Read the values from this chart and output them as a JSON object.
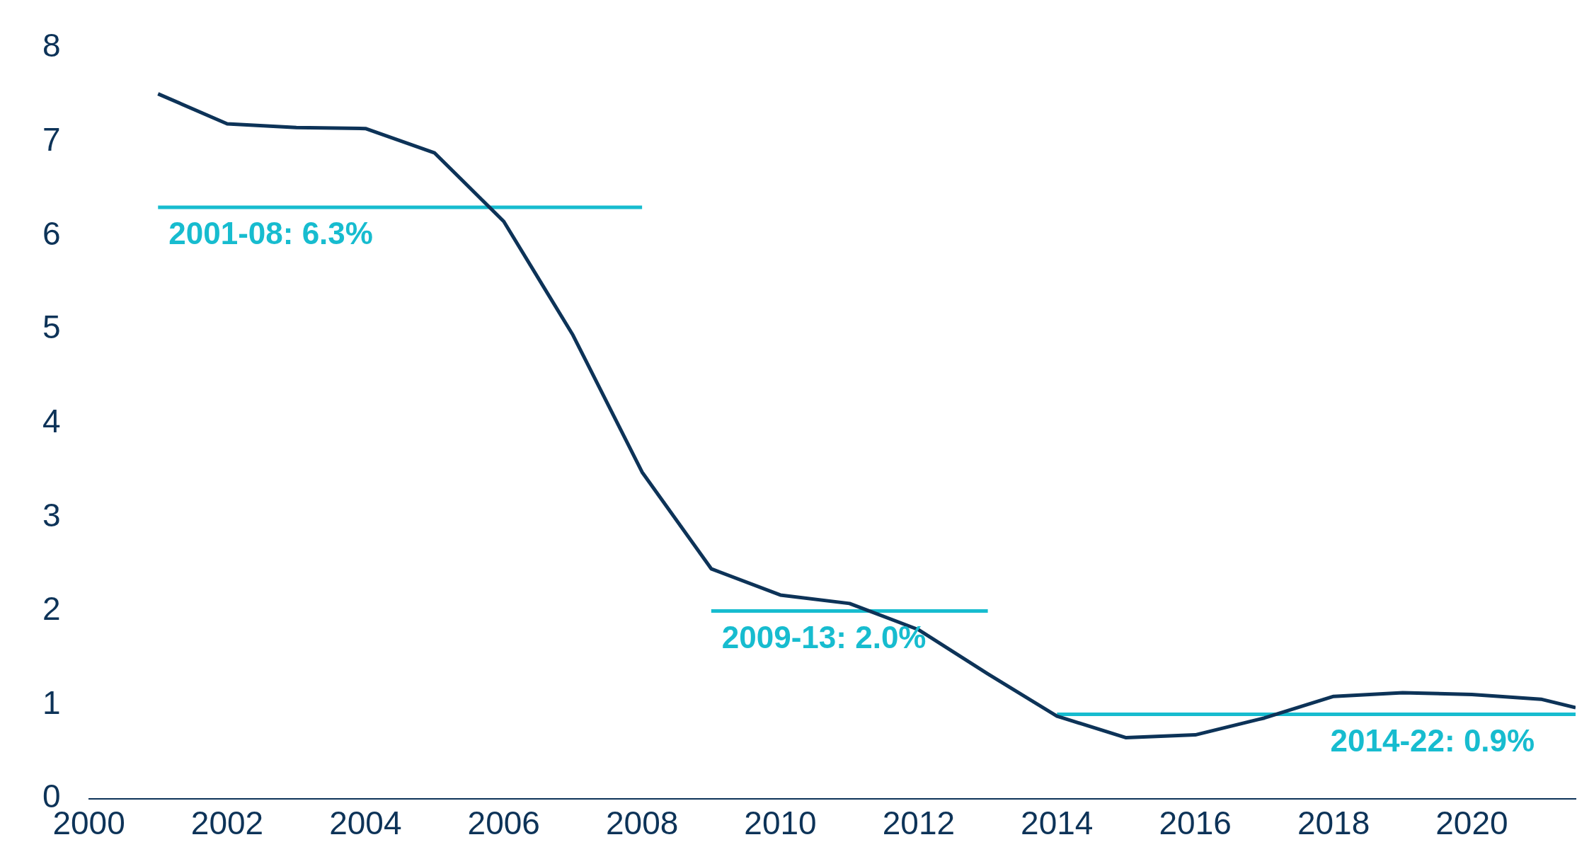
{
  "chart_data": {
    "type": "line",
    "x": [
      2001,
      2002,
      2003,
      2004,
      2005,
      2006,
      2007,
      2008,
      2009,
      2010,
      2011,
      2012,
      2013,
      2014,
      2015,
      2016,
      2017,
      2018,
      2019,
      2020,
      2021,
      2021.5
    ],
    "series": [
      {
        "color": "#0d3358",
        "values": [
          7.51,
          7.19,
          7.15,
          7.14,
          6.88,
          6.15,
          4.94,
          3.48,
          2.45,
          2.17,
          2.08,
          1.8,
          1.33,
          0.88,
          0.65,
          0.68,
          0.86,
          1.09,
          1.13,
          1.11,
          1.06,
          0.97
        ]
      },
      {
        "color": "#17bccf",
        "x": [
          2001,
          2008
        ],
        "values": [
          6.3,
          6.3
        ]
      },
      {
        "color": "#17bccf",
        "x": [
          2009,
          2013
        ],
        "values": [
          2.0,
          2.0
        ]
      },
      {
        "color": "#17bccf",
        "x": [
          2014,
          2021.5
        ],
        "values": [
          0.9,
          0.9
        ]
      }
    ],
    "annotations": [
      {
        "text": "2001-08: 6.3%",
        "x": 2001,
        "y": 6.3
      },
      {
        "text": "2009-13: 2.0%",
        "x": 2009,
        "y": 2.0
      },
      {
        "text": "2014-22: 0.9%",
        "x": 2017.8,
        "y": 0.9
      }
    ],
    "xlim": [
      2000,
      2021.5
    ],
    "xticks": [
      2000,
      2002,
      2004,
      2006,
      2008,
      2010,
      2012,
      2014,
      2016,
      2018,
      2020
    ],
    "ylim": [
      0,
      8
    ],
    "yticks": [
      0,
      1,
      2,
      3,
      4,
      5,
      6,
      7,
      8
    ],
    "grid": false,
    "legend": false,
    "marker": "none",
    "line_style": "solid"
  }
}
